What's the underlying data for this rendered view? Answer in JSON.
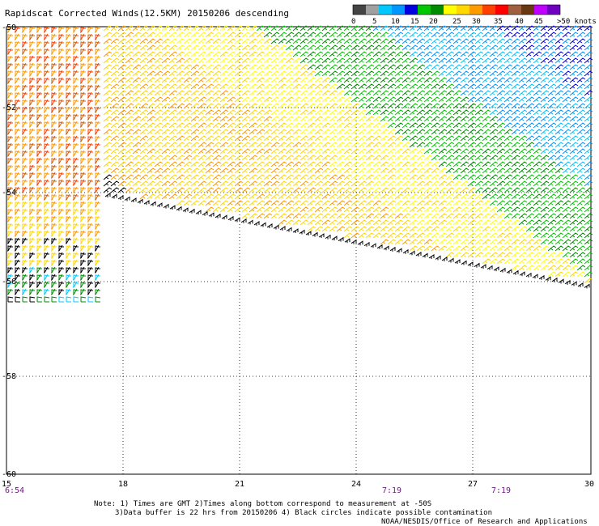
{
  "title": "Rapidscat Corrected Winds(12.5KM) 20150206 descending",
  "colorbar": {
    "colors": [
      "#444444",
      "#a0a0a0",
      "#00c8ff",
      "#0096ff",
      "#0000e0",
      "#00c800",
      "#008c00",
      "#ffff00",
      "#ffd800",
      "#ff9a00",
      "#ff4000",
      "#ff0000",
      "#a06040",
      "#6a3810",
      "#c000ff",
      "#7000c0"
    ],
    "labels": [
      "0",
      "5",
      "10",
      "15",
      "20",
      "25",
      "30",
      "35",
      "40",
      "45",
      ">50 knots"
    ]
  },
  "axes": {
    "y_labels": [
      "-50",
      "-52",
      "-54",
      "-56",
      "-58",
      "-60"
    ],
    "x_labels": [
      "15",
      "18",
      "21",
      "24",
      "27",
      "30"
    ]
  },
  "times": [
    "6:54",
    "7:19",
    "7:19"
  ],
  "notes": {
    "line1": "Note: 1) Times are GMT 2)Times along bottom correspond to measurement at -50S",
    "line2": "3)Data buffer is 22 hrs from 20150206 4) Black circles indicate possible contamination",
    "credit": "NOAA/NESDIS/Office of Research and Applications"
  }
}
